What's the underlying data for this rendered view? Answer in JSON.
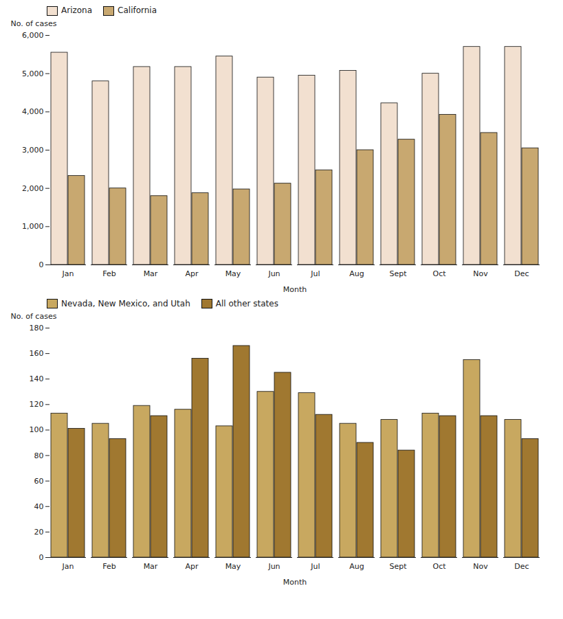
{
  "chart_data": [
    {
      "type": "bar",
      "xlabel": "Month",
      "ylabel": "No. of cases",
      "categories": [
        "Jan",
        "Feb",
        "Mar",
        "Apr",
        "May",
        "Jun",
        "Jul",
        "Aug",
        "Sept",
        "Oct",
        "Nov",
        "Dec"
      ],
      "series": [
        {
          "name": "Arizona",
          "color": "#f2e0d0",
          "values": [
            5550,
            4800,
            5175,
            5175,
            5450,
            4900,
            4950,
            5075,
            4225,
            5000,
            5700,
            5700
          ]
        },
        {
          "name": "California",
          "color": "#c8a870",
          "values": [
            2325,
            2000,
            1800,
            1875,
            1975,
            2125,
            2475,
            3000,
            3275,
            3925,
            3450,
            3050
          ]
        }
      ],
      "ylim": [
        0,
        6000
      ],
      "yticks": [
        0,
        {
          "value": 1000,
          "label": "1,000"
        },
        {
          "value": 2000,
          "label": "2,000"
        },
        {
          "value": 3000,
          "label": "3,000"
        },
        {
          "value": 4000,
          "label": "4,000"
        },
        {
          "value": 5000,
          "label": "5,000"
        },
        {
          "value": 6000,
          "label": "6,000"
        }
      ],
      "legend": "upper left"
    },
    {
      "type": "bar",
      "xlabel": "Month",
      "ylabel": "No. of cases",
      "categories": [
        "Jan",
        "Feb",
        "Mar",
        "Apr",
        "May",
        "Jun",
        "Jul",
        "Aug",
        "Sept",
        "Oct",
        "Nov",
        "Dec"
      ],
      "series": [
        {
          "name": "Nevada, New Mexico, and Utah",
          "color": "#c8a860",
          "values": [
            113,
            105,
            119,
            116,
            103,
            130,
            129,
            105,
            108,
            113,
            155,
            108
          ]
        },
        {
          "name": "All other states",
          "color": "#a07830",
          "values": [
            101,
            93,
            111,
            156,
            166,
            145,
            112,
            90,
            84,
            111,
            111,
            93
          ]
        }
      ],
      "ylim": [
        0,
        180
      ],
      "yticks": [
        0,
        20,
        40,
        60,
        80,
        100,
        120,
        140,
        160,
        180
      ],
      "legend": "upper left"
    }
  ]
}
